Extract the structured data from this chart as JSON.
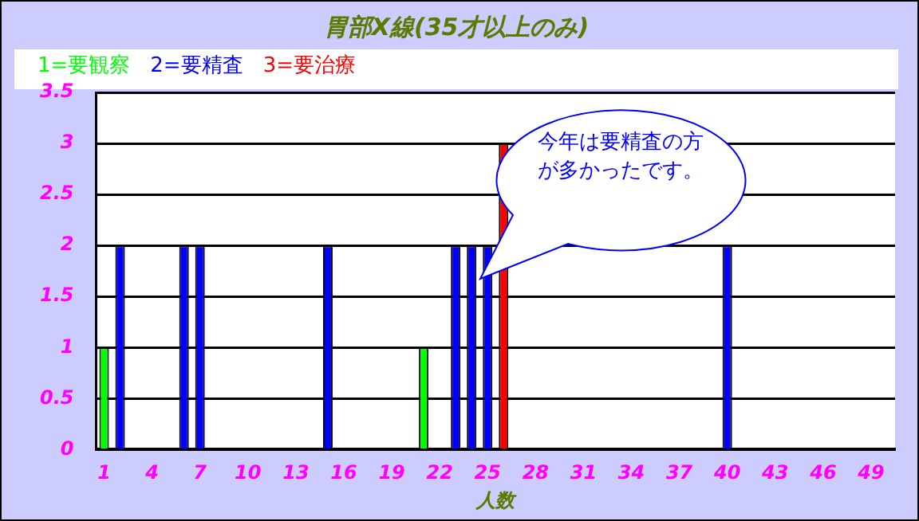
{
  "chart_data": {
    "type": "bar",
    "title": "胃部X線(35才以上のみ)",
    "xlabel": "人数",
    "categories": [
      "1",
      null,
      null,
      "4",
      null,
      null,
      "7",
      null,
      null,
      "10",
      null,
      null,
      "13",
      null,
      null,
      "16",
      null,
      null,
      "19",
      null,
      null,
      "22",
      null,
      null,
      "25",
      null,
      null,
      "28",
      null,
      null,
      "31",
      null,
      null,
      "34",
      null,
      null,
      "37",
      null,
      null,
      "40",
      null,
      null,
      "43",
      null,
      null,
      "46",
      null,
      null,
      "49",
      null
    ],
    "stacked": true,
    "series": [
      {
        "name": "1=要観察",
        "color": "#00ff00",
        "values": [
          1,
          null,
          null,
          null,
          null,
          null,
          null,
          null,
          null,
          null,
          null,
          null,
          null,
          null,
          null,
          null,
          null,
          null,
          null,
          null,
          1,
          null,
          null,
          null,
          null,
          null,
          null,
          null,
          null,
          null,
          null,
          null,
          null,
          null,
          null,
          null,
          null,
          null,
          null,
          null,
          null,
          null,
          null,
          null,
          null,
          null,
          null,
          null,
          null,
          null
        ]
      },
      {
        "name": "2=要精査",
        "color": "#0000ff",
        "values": [
          null,
          2,
          null,
          null,
          null,
          2,
          2,
          null,
          null,
          null,
          null,
          null,
          null,
          null,
          2,
          null,
          null,
          null,
          null,
          null,
          null,
          null,
          2,
          2,
          2,
          null,
          null,
          null,
          null,
          null,
          null,
          null,
          null,
          null,
          null,
          null,
          null,
          null,
          null,
          2,
          null,
          null,
          null,
          null,
          null,
          null,
          null,
          null,
          null,
          null
        ]
      },
      {
        "name": "3=要治療",
        "color": "#ff0000",
        "values": [
          null,
          null,
          null,
          null,
          null,
          null,
          null,
          null,
          null,
          null,
          null,
          null,
          null,
          null,
          null,
          null,
          null,
          null,
          null,
          null,
          null,
          null,
          null,
          null,
          null,
          3,
          null,
          null,
          null,
          null,
          null,
          null,
          null,
          null,
          null,
          null,
          null,
          null,
          null,
          null,
          null,
          null,
          null,
          null,
          null,
          null,
          null,
          null,
          null,
          null
        ]
      }
    ],
    "ylim": [
      0,
      3.5
    ],
    "yticks": [
      0,
      0.5,
      1,
      1.5,
      2,
      2.5,
      3,
      3.5
    ],
    "grid": "y",
    "legend": "top left",
    "annotations": [
      "今年は要精査の方が多かったです。"
    ]
  }
}
